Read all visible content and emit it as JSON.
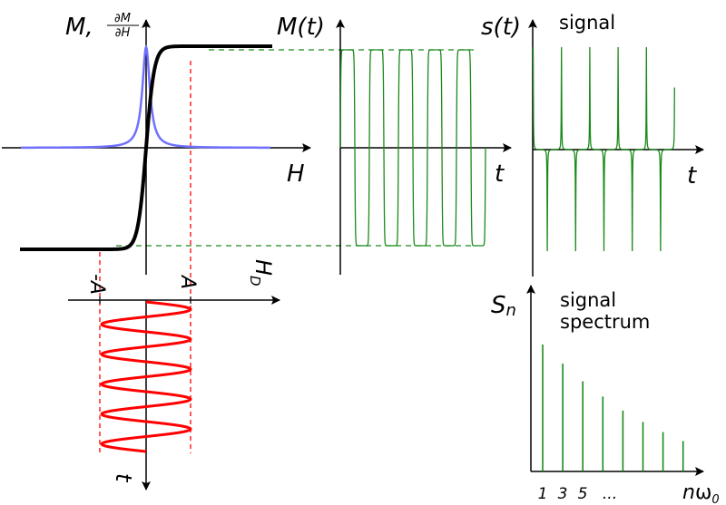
{
  "colors": {
    "axis": "#000000",
    "magnetization_curve": "#000000",
    "derivative_curve": "#7070ff",
    "drive_field": "#ff0000",
    "response": "#1a8a1a"
  },
  "panel_magnetization": {
    "y_label_main": "M,",
    "y_label_frac_num": "∂M",
    "y_label_frac_den": "∂H",
    "x_label": "H"
  },
  "panel_drive": {
    "x_label": "H",
    "x_label_sub": "D",
    "tick_neg": "-A",
    "tick_pos": "A",
    "t_label": "t",
    "periods": 5
  },
  "panel_mt": {
    "y_label": "M(t)",
    "x_label": "t",
    "periods": 5
  },
  "panel_signal": {
    "y_label": "s(t)",
    "title": "signal",
    "x_label": "t"
  },
  "panel_spectrum": {
    "y_label": "S",
    "y_label_sub": "n",
    "title_line1": "signal",
    "title_line2": "spectrum",
    "tick_labels": [
      "1",
      "3",
      "5",
      "..."
    ],
    "x_label": "n",
    "x_label_omega": "ω",
    "x_label_sub": "0",
    "harmonics": [
      1,
      3,
      5,
      7,
      9,
      11,
      13,
      15
    ],
    "relative_amplitudes": [
      1.0,
      0.85,
      0.71,
      0.59,
      0.48,
      0.39,
      0.31,
      0.24
    ]
  }
}
